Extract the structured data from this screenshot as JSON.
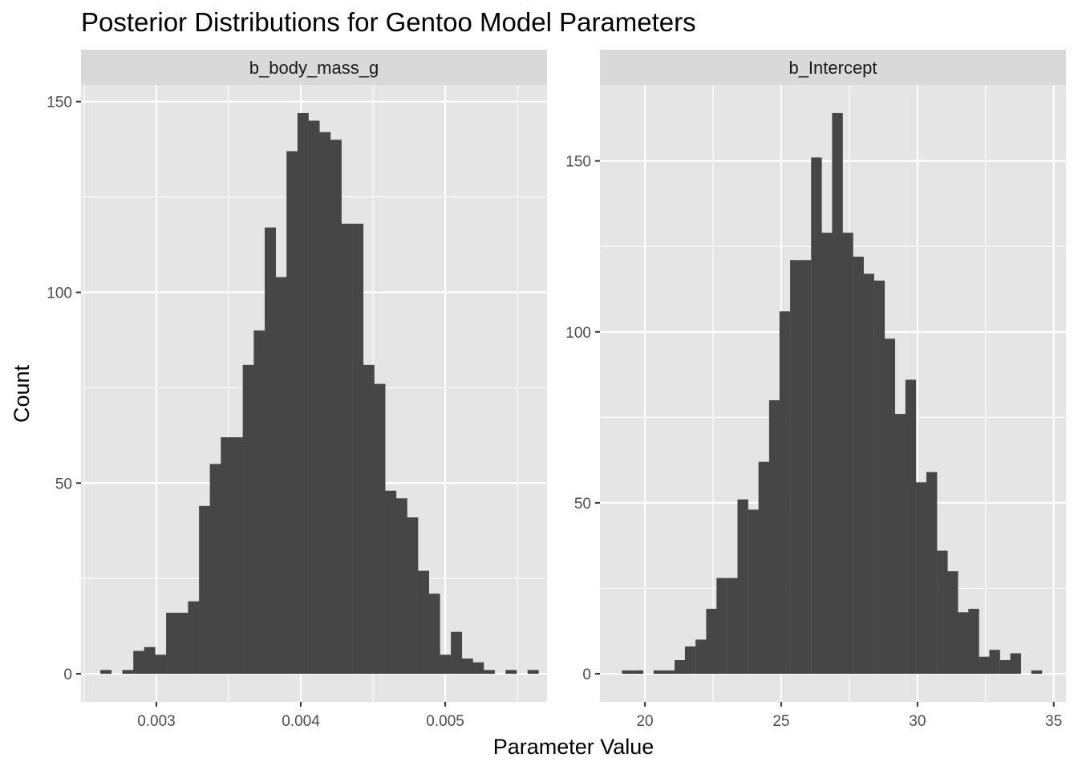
{
  "title": "Posterior Distributions for Gentoo Model Parameters",
  "xlabel": "Parameter Value",
  "ylabel": "Count",
  "colors": {
    "panel_bg": "#e5e5e5",
    "strip_bg": "#d9d9d9",
    "grid": "#ffffff",
    "bar": "#464646",
    "tick": "#333333"
  },
  "chart_data": [
    {
      "type": "bar",
      "histogram": true,
      "facet": "b_body_mass_g",
      "bin_width": 7.58e-05,
      "x": [
        0.00265,
        0.002726,
        0.002802,
        0.002878,
        0.002953,
        0.003029,
        0.003105,
        0.003181,
        0.003257,
        0.003333,
        0.003408,
        0.003484,
        0.00356,
        0.003636,
        0.003712,
        0.003788,
        0.003863,
        0.003939,
        0.004015,
        0.004091,
        0.004167,
        0.004243,
        0.004318,
        0.004394,
        0.00447,
        0.004546,
        0.004622,
        0.004698,
        0.004773,
        0.004849,
        0.004925,
        0.005001,
        0.005077,
        0.005153,
        0.005228,
        0.005304,
        0.00538,
        0.005456,
        0.005532,
        0.005608
      ],
      "values": [
        1,
        0,
        1,
        6,
        7,
        5,
        16,
        16,
        19,
        44,
        55,
        62,
        62,
        81,
        90,
        117,
        104,
        137,
        147,
        145,
        142,
        140,
        118,
        118,
        81,
        76,
        48,
        46,
        41,
        27,
        21,
        5,
        11,
        4,
        3,
        1,
        0,
        1,
        0,
        1
      ],
      "xlim": [
        0.002478,
        0.005705
      ],
      "ylim": [
        -7.35,
        154.35
      ],
      "xticks": [
        0.003,
        0.004,
        0.005
      ],
      "xtick_labels": [
        "0.003",
        "0.004",
        "0.005"
      ],
      "yticks": [
        0,
        50,
        100,
        150
      ],
      "ytick_labels": [
        "0",
        "50",
        "100",
        "150"
      ]
    },
    {
      "type": "bar",
      "histogram": true,
      "facet": "b_Intercept",
      "bin_width": 0.385,
      "x": [
        19.35,
        19.74,
        20.12,
        20.51,
        20.89,
        21.28,
        21.66,
        22.05,
        22.44,
        22.82,
        23.21,
        23.59,
        23.98,
        24.36,
        24.75,
        25.13,
        25.52,
        25.9,
        26.29,
        26.67,
        27.06,
        27.44,
        27.83,
        28.21,
        28.6,
        28.98,
        29.37,
        29.75,
        30.14,
        30.52,
        30.91,
        31.29,
        31.68,
        32.06,
        32.45,
        32.83,
        33.22,
        33.6,
        33.99,
        34.37
      ],
      "values": [
        1,
        1,
        0,
        1,
        1,
        4,
        8,
        10,
        19,
        28,
        28,
        51,
        48,
        62,
        80,
        106,
        121,
        121,
        151,
        129,
        164,
        129,
        122,
        117,
        115,
        98,
        76,
        86,
        56,
        59,
        36,
        30,
        18,
        19,
        5,
        7,
        4,
        6,
        0,
        1
      ],
      "xlim": [
        18.35,
        35.45
      ],
      "ylim": [
        -8.2,
        172.2
      ],
      "xticks": [
        20,
        25,
        30,
        35
      ],
      "xtick_labels": [
        "20",
        "25",
        "30",
        "35"
      ],
      "yticks": [
        0,
        50,
        100,
        150
      ],
      "ytick_labels": [
        "0",
        "50",
        "100",
        "150"
      ]
    }
  ]
}
